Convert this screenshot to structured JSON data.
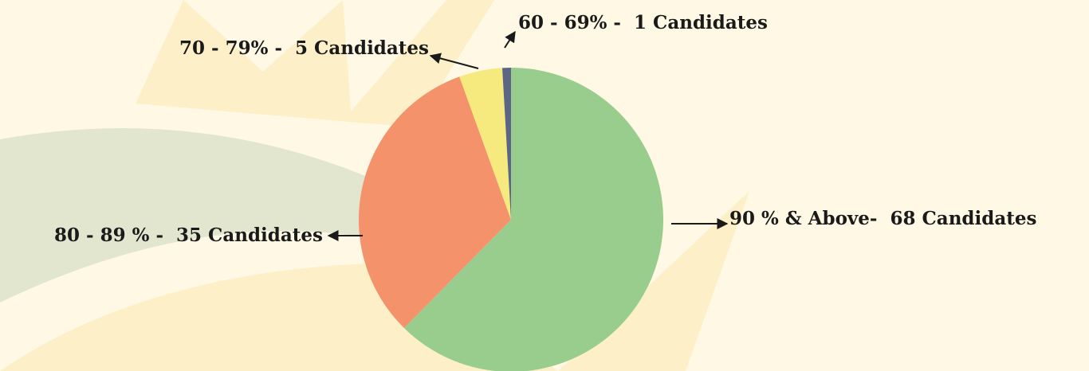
{
  "chart_data": {
    "type": "pie",
    "values": [
      68,
      35,
      5,
      1
    ],
    "value_labels": [
      "90 % & Above-  68 Candidates",
      "80 - 89 % -  35 Candidates",
      "70 - 79% -  5 Candidates",
      "60 - 69% -  1 Candidates"
    ],
    "colors": [
      "#98cd8d",
      "#f4936b",
      "#f6e97e",
      "#5c6585"
    ]
  }
}
